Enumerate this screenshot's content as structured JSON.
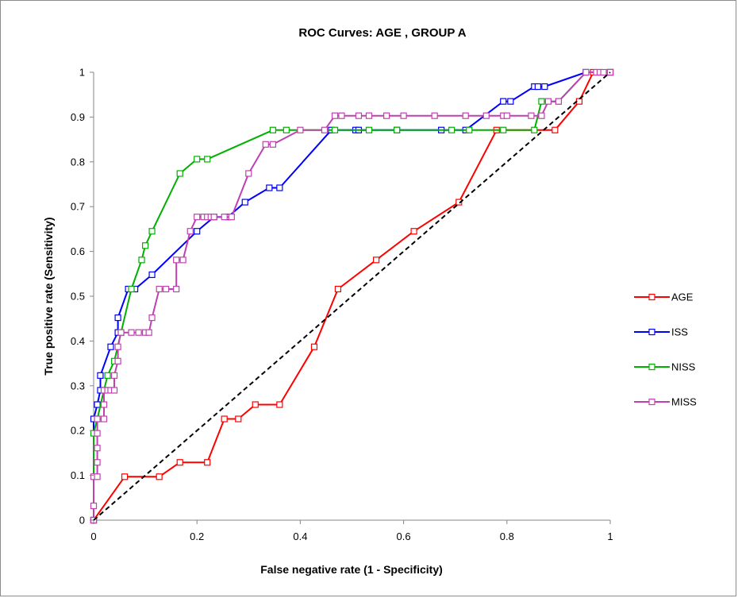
{
  "chart_data": {
    "type": "line",
    "title": "ROC Curves: AGE , GROUP A",
    "xlabel": "False negative rate (1 - Specificity)",
    "ylabel": "True positive rate (Sensitivity)",
    "xlim": [
      0,
      1
    ],
    "ylim": [
      0,
      1
    ],
    "xticks": [
      "0",
      "0.2",
      "0.4",
      "0.6",
      "0.8",
      "1"
    ],
    "yticks": [
      "0",
      "0.1",
      "0.2",
      "0.3",
      "0.4",
      "0.5",
      "0.6",
      "0.7",
      "0.8",
      "0.9",
      "1"
    ],
    "grid": false,
    "legend_position": "right",
    "diagonal": {
      "style": "dashed",
      "color": "#000000"
    },
    "series": [
      {
        "name": "AGE",
        "color": "#ff0000",
        "points": [
          [
            0,
            0
          ],
          [
            0.06,
            0.097
          ],
          [
            0.127,
            0.097
          ],
          [
            0.167,
            0.129
          ],
          [
            0.22,
            0.129
          ],
          [
            0.253,
            0.226
          ],
          [
            0.28,
            0.226
          ],
          [
            0.313,
            0.258
          ],
          [
            0.36,
            0.258
          ],
          [
            0.427,
            0.387
          ],
          [
            0.473,
            0.516
          ],
          [
            0.547,
            0.581
          ],
          [
            0.62,
            0.645
          ],
          [
            0.707,
            0.71
          ],
          [
            0.78,
            0.871
          ],
          [
            0.893,
            0.871
          ],
          [
            0.94,
            0.935
          ],
          [
            0.967,
            1
          ],
          [
            1,
            1
          ]
        ]
      },
      {
        "name": "ISS",
        "color": "#0000ff",
        "points": [
          [
            0,
            0
          ],
          [
            0,
            0.226
          ],
          [
            0.007,
            0.258
          ],
          [
            0.013,
            0.29
          ],
          [
            0.013,
            0.323
          ],
          [
            0.033,
            0.387
          ],
          [
            0.047,
            0.419
          ],
          [
            0.047,
            0.452
          ],
          [
            0.067,
            0.516
          ],
          [
            0.08,
            0.516
          ],
          [
            0.113,
            0.548
          ],
          [
            0.2,
            0.645
          ],
          [
            0.233,
            0.677
          ],
          [
            0.26,
            0.677
          ],
          [
            0.293,
            0.71
          ],
          [
            0.34,
            0.742
          ],
          [
            0.36,
            0.742
          ],
          [
            0.46,
            0.871
          ],
          [
            0.507,
            0.871
          ],
          [
            0.513,
            0.871
          ],
          [
            0.587,
            0.871
          ],
          [
            0.673,
            0.871
          ],
          [
            0.72,
            0.871
          ],
          [
            0.793,
            0.935
          ],
          [
            0.807,
            0.935
          ],
          [
            0.853,
            0.968
          ],
          [
            0.86,
            0.968
          ],
          [
            0.873,
            0.968
          ],
          [
            0.953,
            1
          ],
          [
            1,
            1
          ]
        ]
      },
      {
        "name": "NISS",
        "color": "#00b000",
        "points": [
          [
            0,
            0
          ],
          [
            0,
            0.194
          ],
          [
            0.007,
            0.226
          ],
          [
            0.02,
            0.29
          ],
          [
            0.027,
            0.323
          ],
          [
            0.04,
            0.355
          ],
          [
            0.053,
            0.419
          ],
          [
            0.073,
            0.516
          ],
          [
            0.093,
            0.581
          ],
          [
            0.1,
            0.613
          ],
          [
            0.113,
            0.645
          ],
          [
            0.167,
            0.774
          ],
          [
            0.2,
            0.806
          ],
          [
            0.22,
            0.806
          ],
          [
            0.347,
            0.871
          ],
          [
            0.373,
            0.871
          ],
          [
            0.467,
            0.871
          ],
          [
            0.533,
            0.871
          ],
          [
            0.587,
            0.871
          ],
          [
            0.693,
            0.871
          ],
          [
            0.727,
            0.871
          ],
          [
            0.793,
            0.871
          ],
          [
            0.853,
            0.871
          ],
          [
            0.867,
            0.935
          ],
          [
            0.9,
            0.935
          ],
          [
            0.953,
            1
          ],
          [
            1,
            1
          ]
        ]
      },
      {
        "name": "MISS",
        "color": "#c040b0",
        "points": [
          [
            0,
            0
          ],
          [
            0,
            0.032
          ],
          [
            0,
            0.097
          ],
          [
            0.007,
            0.097
          ],
          [
            0.007,
            0.129
          ],
          [
            0.007,
            0.161
          ],
          [
            0.007,
            0.194
          ],
          [
            0.007,
            0.226
          ],
          [
            0.02,
            0.226
          ],
          [
            0.02,
            0.258
          ],
          [
            0.02,
            0.29
          ],
          [
            0.027,
            0.29
          ],
          [
            0.033,
            0.29
          ],
          [
            0.04,
            0.29
          ],
          [
            0.04,
            0.323
          ],
          [
            0.047,
            0.355
          ],
          [
            0.047,
            0.387
          ],
          [
            0.053,
            0.419
          ],
          [
            0.073,
            0.419
          ],
          [
            0.087,
            0.419
          ],
          [
            0.1,
            0.419
          ],
          [
            0.107,
            0.419
          ],
          [
            0.113,
            0.452
          ],
          [
            0.127,
            0.516
          ],
          [
            0.14,
            0.516
          ],
          [
            0.16,
            0.516
          ],
          [
            0.16,
            0.581
          ],
          [
            0.173,
            0.581
          ],
          [
            0.187,
            0.645
          ],
          [
            0.2,
            0.677
          ],
          [
            0.213,
            0.677
          ],
          [
            0.22,
            0.677
          ],
          [
            0.227,
            0.677
          ],
          [
            0.233,
            0.677
          ],
          [
            0.253,
            0.677
          ],
          [
            0.267,
            0.677
          ],
          [
            0.3,
            0.774
          ],
          [
            0.333,
            0.839
          ],
          [
            0.347,
            0.839
          ],
          [
            0.4,
            0.871
          ],
          [
            0.447,
            0.871
          ],
          [
            0.467,
            0.903
          ],
          [
            0.48,
            0.903
          ],
          [
            0.513,
            0.903
          ],
          [
            0.533,
            0.903
          ],
          [
            0.567,
            0.903
          ],
          [
            0.6,
            0.903
          ],
          [
            0.66,
            0.903
          ],
          [
            0.72,
            0.903
          ],
          [
            0.76,
            0.903
          ],
          [
            0.793,
            0.903
          ],
          [
            0.8,
            0.903
          ],
          [
            0.847,
            0.903
          ],
          [
            0.867,
            0.903
          ],
          [
            0.88,
            0.935
          ],
          [
            0.9,
            0.935
          ],
          [
            0.953,
            1
          ],
          [
            0.973,
            1
          ],
          [
            0.98,
            1
          ],
          [
            0.987,
            1
          ],
          [
            1,
            1
          ]
        ]
      }
    ]
  }
}
